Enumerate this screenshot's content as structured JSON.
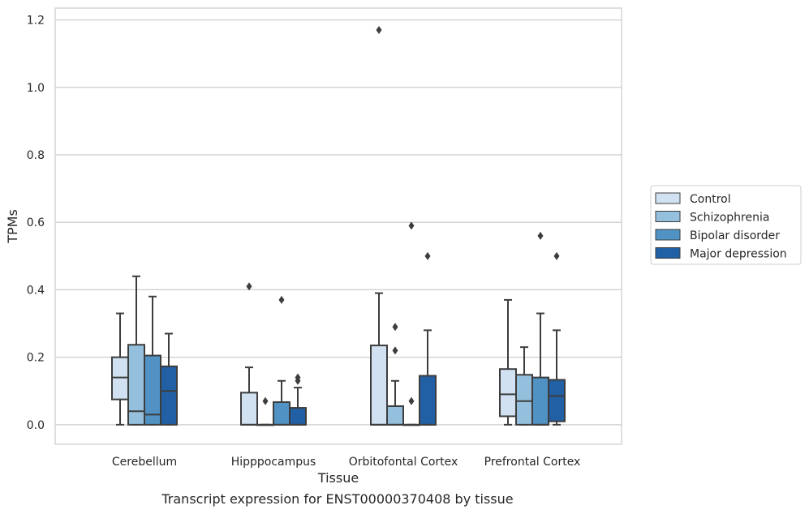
{
  "chart_data": {
    "type": "box",
    "xlabel": "Tissue",
    "ylabel": "TPMs",
    "caption": "Transcript expression for ENST00000370408 by tissue",
    "ylim": [
      -0.058,
      1.235
    ],
    "yticks": [
      0.0,
      0.2,
      0.4,
      0.6,
      0.8,
      1.0,
      1.2
    ],
    "ytick_labels": [
      "0.0",
      "0.2",
      "0.4",
      "0.6",
      "0.8",
      "1.0",
      "1.2"
    ],
    "grid": "horizontal",
    "legend_position": "right",
    "categories": [
      "Cerebellum",
      "Hipppocampus",
      "Orbitofontal Cortex",
      "Prefrontal Cortex"
    ],
    "series": [
      {
        "name": "Control",
        "color": "#d1e1f1",
        "boxes": [
          {
            "q1": 0.075,
            "median": 0.14,
            "q3": 0.2,
            "whislo": 0.0,
            "whishi": 0.33,
            "fliers": []
          },
          {
            "q1": 0.0,
            "median": 0.0,
            "q3": 0.095,
            "whislo": 0.0,
            "whishi": 0.17,
            "fliers": [
              0.41
            ]
          },
          {
            "q1": 0.0,
            "median": 0.0,
            "q3": 0.235,
            "whislo": 0.0,
            "whishi": 0.39,
            "fliers": [
              1.17
            ]
          },
          {
            "q1": 0.025,
            "median": 0.09,
            "q3": 0.165,
            "whislo": 0.0,
            "whishi": 0.37,
            "fliers": []
          }
        ]
      },
      {
        "name": "Schizophrenia",
        "color": "#95c0dd",
        "boxes": [
          {
            "q1": 0.0,
            "median": 0.04,
            "q3": 0.237,
            "whislo": 0.0,
            "whishi": 0.44,
            "fliers": []
          },
          {
            "q1": 0.0,
            "median": 0.0,
            "q3": 0.0,
            "whislo": 0.0,
            "whishi": 0.0,
            "fliers": [
              0.07
            ]
          },
          {
            "q1": 0.0,
            "median": 0.0,
            "q3": 0.055,
            "whislo": 0.0,
            "whishi": 0.13,
            "fliers": [
              0.22,
              0.29
            ]
          },
          {
            "q1": 0.0,
            "median": 0.07,
            "q3": 0.148,
            "whislo": 0.0,
            "whishi": 0.23,
            "fliers": []
          }
        ]
      },
      {
        "name": "Bipolar disorder",
        "color": "#5092c4",
        "boxes": [
          {
            "q1": 0.0,
            "median": 0.03,
            "q3": 0.205,
            "whislo": 0.0,
            "whishi": 0.38,
            "fliers": []
          },
          {
            "q1": 0.0,
            "median": 0.0,
            "q3": 0.067,
            "whislo": 0.0,
            "whishi": 0.13,
            "fliers": [
              0.37
            ]
          },
          {
            "q1": 0.0,
            "median": 0.0,
            "q3": 0.0,
            "whislo": 0.0,
            "whishi": 0.0,
            "fliers": [
              0.07,
              0.59
            ]
          },
          {
            "q1": 0.0,
            "median": 0.0,
            "q3": 0.14,
            "whislo": 0.0,
            "whishi": 0.33,
            "fliers": [
              0.56
            ]
          }
        ]
      },
      {
        "name": "Major depression",
        "color": "#2160a5",
        "boxes": [
          {
            "q1": 0.0,
            "median": 0.1,
            "q3": 0.173,
            "whislo": 0.0,
            "whishi": 0.27,
            "fliers": []
          },
          {
            "q1": 0.0,
            "median": 0.0,
            "q3": 0.05,
            "whislo": 0.0,
            "whishi": 0.11,
            "fliers": [
              0.13,
              0.14
            ]
          },
          {
            "q1": 0.0,
            "median": 0.0,
            "q3": 0.145,
            "whislo": 0.0,
            "whishi": 0.28,
            "fliers": [
              0.5
            ]
          },
          {
            "q1": 0.01,
            "median": 0.085,
            "q3": 0.133,
            "whislo": 0.0,
            "whishi": 0.28,
            "fliers": [
              0.5
            ]
          }
        ]
      }
    ]
  }
}
